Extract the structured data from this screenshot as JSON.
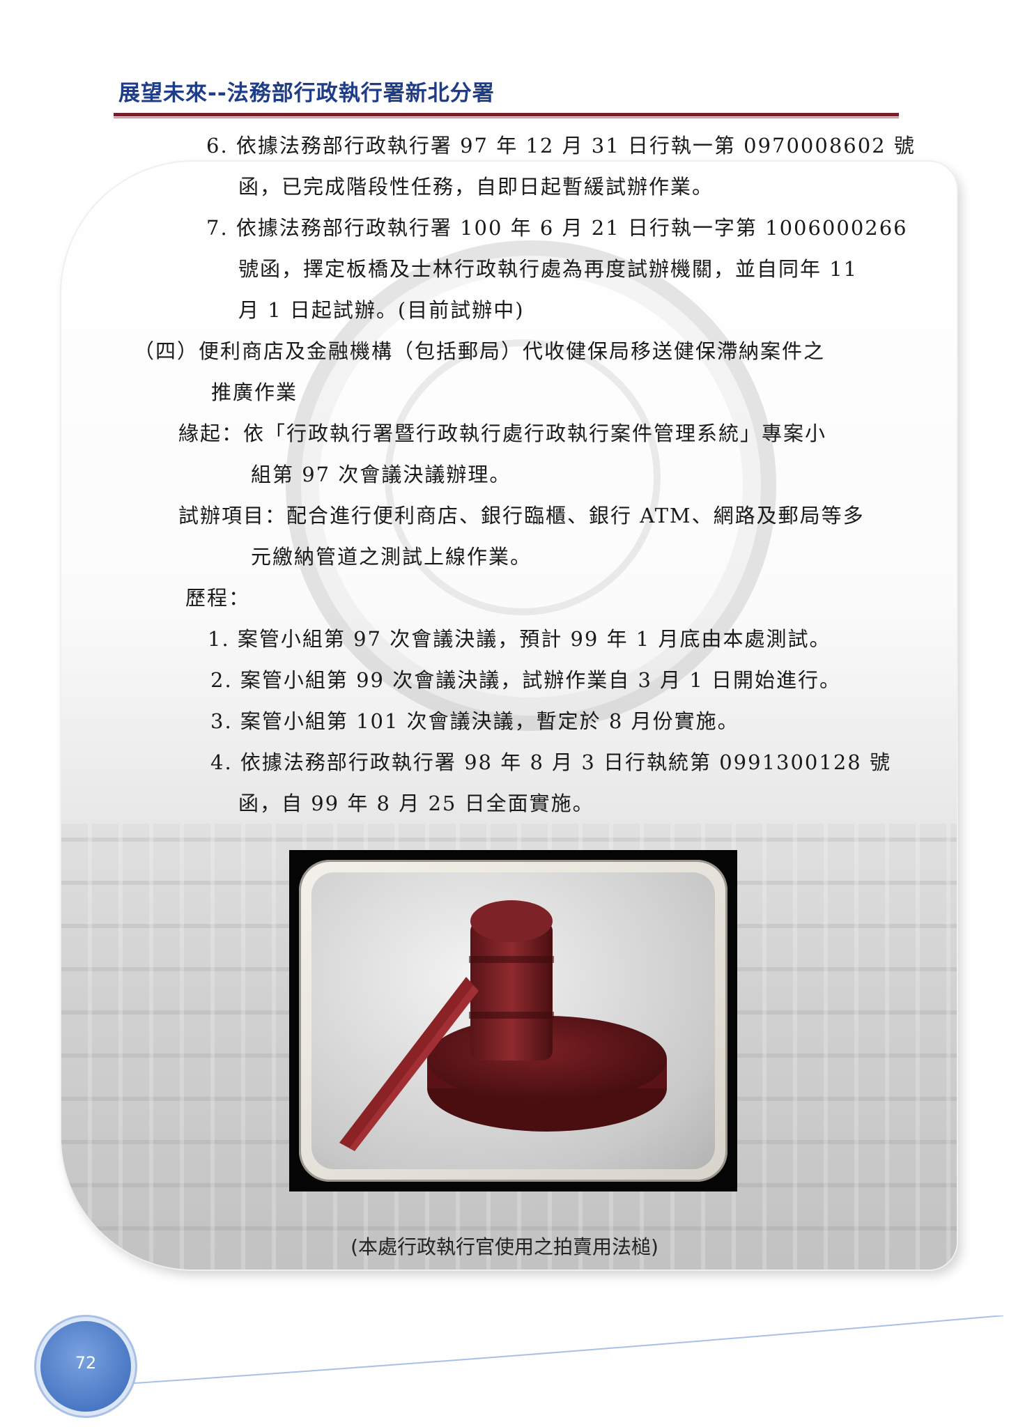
{
  "header": {
    "title": "展望未來--法務部行政執行署新北分署"
  },
  "body_lines": [
    "6. 依據法務部行政執行署 97 年 12 月 31 日行執一第 0970008602 號",
    "函，已完成階段性任務，自即日起暫緩試辦作業。",
    "7. 依據法務部行政執行署 100 年 6 月 21 日行執一字第 1006000266",
    "號函，擇定板橋及士林行政執行處為再度試辦機關，並自同年 11",
    "月 1 日起試辦。(目前試辦中)",
    "（四）便利商店及金融機構（包括郵局）代收健保局移送健保滯納案件之",
    "推廣作業",
    "緣起：依「行政執行署暨行政執行處行政執行案件管理系統」專案小",
    "組第 97 次會議決議辦理。",
    "試辦項目：配合進行便利商店、銀行臨櫃、銀行 ATM、網路及郵局等多",
    "元繳納管道之測試上線作業。",
    "歷程：",
    "1. 案管小組第 97 次會議決議，預計 99 年 1 月底由本處測試。",
    "2. 案管小組第 99 次會議決議，試辦作業自 3 月 1 日開始進行。",
    "3. 案管小組第 101 次會議決議，暫定於 8 月份實施。",
    "4. 依據法務部行政執行署 98 年 8 月 3 日行執統第 0991300128 號",
    "函，自 99 年 8 月 25 日全面實施。"
  ],
  "photo": {
    "caption": "(本處行政執行官使用之拍賣用法槌)"
  },
  "footer": {
    "page_number": "72"
  },
  "colors": {
    "header_title": "#1f3c88",
    "header_rule": "#7a1f2a",
    "page_circle": "#4a78c4"
  }
}
